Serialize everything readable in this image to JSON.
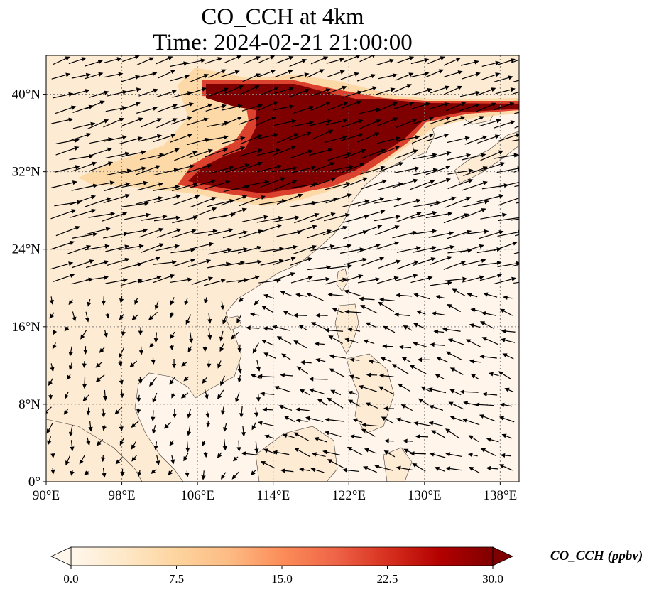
{
  "title": {
    "line1": "CO_CCH at 4km",
    "line2": "Time: 2024-02-21 21:00:00"
  },
  "map": {
    "lon_range": [
      90,
      140
    ],
    "lat_range": [
      0,
      44
    ],
    "lon_ticks": [
      {
        "value": 90,
        "label": "90°E"
      },
      {
        "value": 98,
        "label": "98°E"
      },
      {
        "value": 106,
        "label": "106°E"
      },
      {
        "value": 114,
        "label": "114°E"
      },
      {
        "value": 122,
        "label": "122°E"
      },
      {
        "value": 130,
        "label": "130°E"
      },
      {
        "value": 138,
        "label": "138°E"
      }
    ],
    "lat_ticks": [
      {
        "value": 0,
        "label": "0°"
      },
      {
        "value": 8,
        "label": "8°N"
      },
      {
        "value": 16,
        "label": "16°N"
      },
      {
        "value": 24,
        "label": "24°N"
      },
      {
        "value": 32,
        "label": "32°N"
      },
      {
        "value": 40,
        "label": "40°N"
      }
    ],
    "gridlines": "dotted",
    "background_color": "#fff5eb",
    "land_color": "#fef0de",
    "overlay": "wind vectors (black arrows)"
  },
  "colorbar": {
    "label": "CO_CCH (ppbv)",
    "min": 0.0,
    "max": 30.0,
    "ticks": [
      "0.0",
      "7.5",
      "15.0",
      "22.5",
      "30.0"
    ],
    "extend": "both",
    "colormap": "OrRd",
    "stops": [
      "#fff7ec",
      "#fee8c8",
      "#fdd49e",
      "#fdbb84",
      "#fc8d59",
      "#ef6548",
      "#d7301f",
      "#b30000",
      "#7f0000"
    ]
  }
}
